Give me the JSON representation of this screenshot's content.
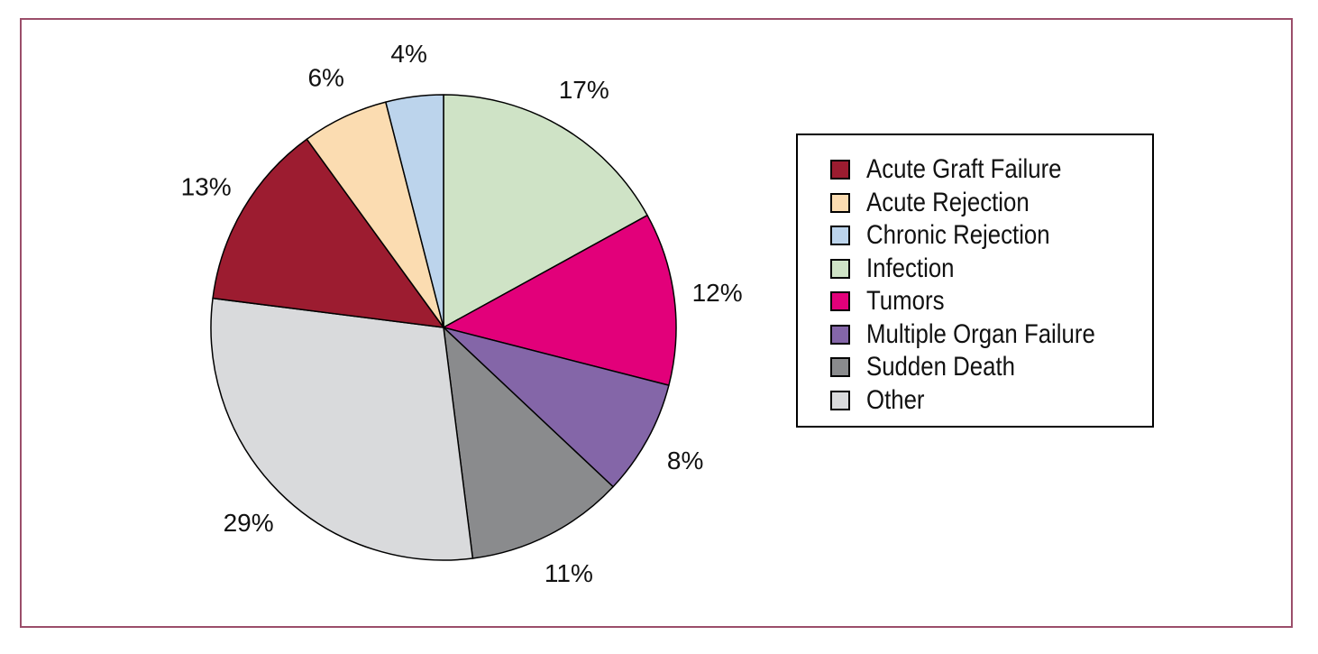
{
  "chart_data": {
    "type": "pie",
    "categories": [
      "Infection",
      "Tumors",
      "Multiple Organ Failure",
      "Sudden Death",
      "Other",
      "Acute Graft Failure",
      "Acute Rejection",
      "Chronic Rejection"
    ],
    "values": [
      17,
      12,
      8,
      11,
      29,
      13,
      6,
      4
    ],
    "labels": [
      "17%",
      "12%",
      "8%",
      "11%",
      "29%",
      "13%",
      "6%",
      "4%"
    ],
    "colors": [
      "#cfe3c6",
      "#e2007a",
      "#8466a8",
      "#8a8b8d",
      "#d9dadc",
      "#9c1c30",
      "#fbdcb1",
      "#bcd4ec"
    ],
    "legend": {
      "placement": "right",
      "items": [
        {
          "label": "Acute Graft Failure",
          "color": "#9c1c30"
        },
        {
          "label": "Acute Rejection",
          "color": "#fbdcb1"
        },
        {
          "label": "Chronic Rejection",
          "color": "#bcd4ec"
        },
        {
          "label": "Infection",
          "color": "#cfe3c6"
        },
        {
          "label": "Tumors",
          "color": "#e2007a"
        },
        {
          "label": "Multiple Organ Failure",
          "color": "#8466a8"
        },
        {
          "label": "Sudden Death",
          "color": "#8a8b8d"
        },
        {
          "label": "Other",
          "color": "#d9dadc"
        }
      ]
    }
  },
  "colors": {
    "frame_border": "#9b4e6a",
    "slice_border": "#000000"
  }
}
